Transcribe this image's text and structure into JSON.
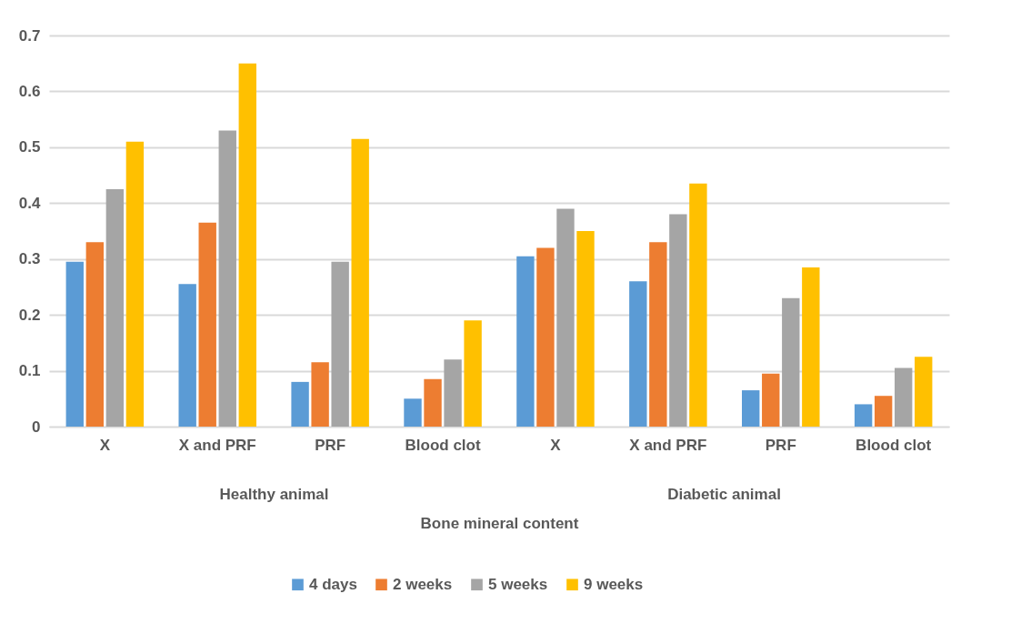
{
  "chart_data": {
    "type": "bar",
    "categories": [
      "X",
      "X and PRF",
      "PRF",
      "Blood clot",
      "X",
      "X and PRF",
      "PRF",
      "Blood clot"
    ],
    "xlabel": "Bone mineral content",
    "annotations": [
      "Healthy animal",
      "Diabetic animal"
    ],
    "series": [
      {
        "name": "4 days",
        "color": "#5b9bd5",
        "values": [
          0.295,
          0.255,
          0.08,
          0.05,
          0.305,
          0.26,
          0.065,
          0.04
        ]
      },
      {
        "name": "2 weeks",
        "color": "#ed7d31",
        "values": [
          0.33,
          0.365,
          0.115,
          0.085,
          0.32,
          0.33,
          0.095,
          0.055
        ]
      },
      {
        "name": "5 weeks",
        "color": "#a5a5a5",
        "values": [
          0.425,
          0.53,
          0.295,
          0.12,
          0.39,
          0.38,
          0.23,
          0.105
        ]
      },
      {
        "name": "9 weeks",
        "color": "#ffc000",
        "values": [
          0.51,
          0.65,
          0.515,
          0.19,
          0.35,
          0.435,
          0.285,
          0.125
        ]
      }
    ],
    "ylim": [
      0,
      0.7
    ],
    "yticks": [
      0,
      0.1,
      0.2,
      0.3,
      0.4,
      0.5,
      0.6,
      0.7
    ],
    "grid": "y",
    "legend": "bottom"
  }
}
